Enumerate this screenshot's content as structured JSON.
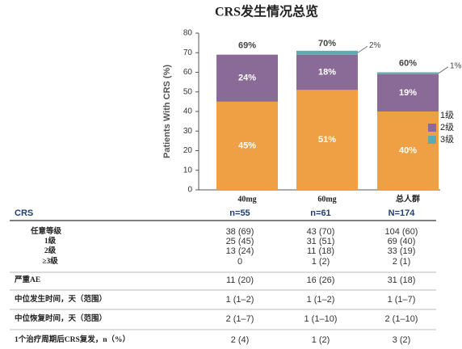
{
  "chart_data": {
    "type": "stacked-bar",
    "title": "CRS发生情况总览",
    "y_label": "Patients With CRS (%)",
    "categories": [
      "40mg",
      "60mg",
      "总人群"
    ],
    "series": [
      {
        "name": "1级",
        "color": "#f0a044",
        "values": [
          45,
          51,
          40
        ],
        "value_labels": [
          "45%",
          "51%",
          "40%"
        ]
      },
      {
        "name": "2级",
        "color": "#8a6b98",
        "values": [
          24,
          18,
          19
        ],
        "value_labels": [
          "24%",
          "18%",
          "19%"
        ]
      },
      {
        "name": "3级",
        "color": "#5fa9b1",
        "values": [
          0,
          2,
          1
        ],
        "value_labels": [
          null,
          "2%",
          "1%"
        ]
      }
    ],
    "totals": {
      "values": [
        69,
        70,
        60
      ],
      "value_labels": [
        "69%",
        "70%",
        "60%"
      ]
    },
    "ylim": [
      0,
      80
    ],
    "yticks": [
      0,
      10,
      20,
      30,
      40,
      50,
      60,
      70,
      80
    ]
  },
  "table": {
    "header": [
      "CRS",
      "n=55",
      "n=61",
      "N=174"
    ],
    "rows": [
      [
        "任意等级",
        "38 (69)",
        "43 (70)",
        "104 (60)"
      ],
      [
        "1级",
        "25 (45)",
        "31 (51)",
        "69 (40)"
      ],
      [
        "2级",
        "13 (24)",
        "11 (18)",
        "33 (19)"
      ],
      [
        "≥3级",
        "0",
        "1 (2)",
        "2 (1)"
      ],
      [
        "严重AE",
        "11 (20)",
        "16 (26)",
        "31 (18)"
      ],
      [
        "中位发生时间，天（范围）",
        "1 (1–2)",
        "1 (1–2)",
        "1 (1–7)"
      ],
      [
        "中位恢复时间，天（范围）",
        "2 (1–7)",
        "1 (1–10)",
        "2 (1–10)"
      ],
      [
        "1个治疗周期后CRS复发，n（%）",
        "2 (4)",
        "1 (2)",
        "3 (2)"
      ]
    ]
  }
}
